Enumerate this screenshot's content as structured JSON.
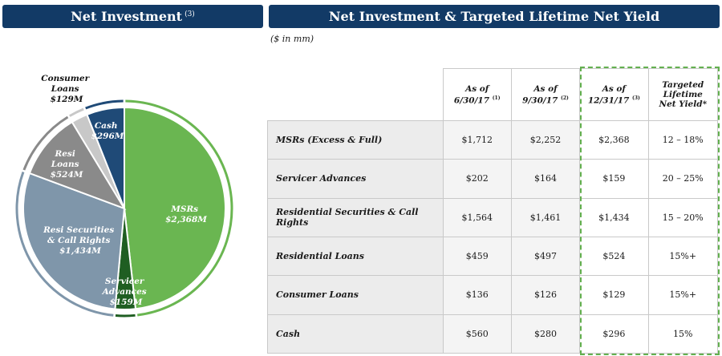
{
  "header": {
    "left_title": "Net Investment",
    "left_footnote": "(3)",
    "right_title": "Net Investment & Targeted Lifetime Net Yield",
    "units": "($ in mm)"
  },
  "chart_data": [
    {
      "type": "pie",
      "title": "Net Investment",
      "unit": "$M",
      "slices": [
        {
          "name": "MSRs",
          "value": 2368,
          "label": "$2,368M",
          "color": "#6ab651"
        },
        {
          "name": "Servicer Advances",
          "value": 159,
          "label": "$159M",
          "color": "#1f5e22"
        },
        {
          "name": "Resi Securities & Call Rights",
          "value": 1434,
          "label": "$1,434M",
          "color": "#7f96aa"
        },
        {
          "name": "Resi Loans",
          "value": 524,
          "label": "$524M",
          "color": "#8a8a8a"
        },
        {
          "name": "Consumer Loans",
          "value": 129,
          "label": "$129M",
          "color": "#c8c8c8"
        },
        {
          "name": "Cash",
          "value": 296,
          "label": "$296M",
          "color": "#1f4a77"
        }
      ]
    },
    {
      "type": "table",
      "columns": [
        "As of 6/30/17",
        "As of 9/30/17",
        "As of 12/31/17",
        "Targeted Lifetime Net Yield*"
      ],
      "rows": [
        {
          "label": "MSRs (Excess & Full)",
          "values": [
            "$1,712",
            "$2,252",
            "$2,368",
            "12 – 18%"
          ]
        },
        {
          "label": "Servicer Advances",
          "values": [
            "$202",
            "$164",
            "$159",
            "20 – 25%"
          ]
        },
        {
          "label": "Residential Securities & Call Rights",
          "values": [
            "$1,564",
            "$1,461",
            "$1,434",
            "15 – 20%"
          ]
        },
        {
          "label": "Residential Loans",
          "values": [
            "$459",
            "$497",
            "$524",
            "15%+"
          ]
        },
        {
          "label": "Consumer Loans",
          "values": [
            "$136",
            "$126",
            "$129",
            "15%+"
          ]
        },
        {
          "label": "Cash",
          "values": [
            "$560",
            "$280",
            "$296",
            "15%"
          ]
        }
      ]
    }
  ],
  "pie_labels": {
    "msrs": [
      "MSRs",
      "$2,368M"
    ],
    "servicer": [
      "Servicer",
      "Advances",
      "$159M"
    ],
    "resi_sec": [
      "Resi Securities",
      "& Call Rights",
      "$1,434M"
    ],
    "resi_loans": [
      "Resi",
      "Loans",
      "$524M"
    ],
    "consumer": [
      "Consumer",
      "Loans",
      "$129M"
    ],
    "cash": [
      "Cash",
      "$296M"
    ]
  },
  "table": {
    "headers": [
      {
        "line1": "As of",
        "line2": "6/30/17",
        "note": "(1)"
      },
      {
        "line1": "As of",
        "line2": "9/30/17",
        "note": "(2)"
      },
      {
        "line1": "As of",
        "line2": "12/31/17",
        "note": "(3)"
      },
      {
        "line1": "Targeted",
        "line2": "Lifetime",
        "line3": "Net Yield*"
      }
    ]
  }
}
